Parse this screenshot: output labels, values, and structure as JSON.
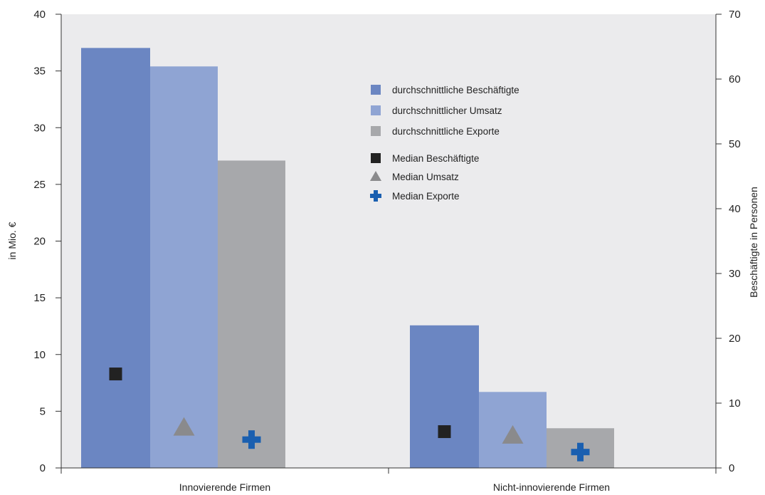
{
  "chart_data": {
    "type": "bar",
    "categories": [
      "Innovierende Firmen",
      "Nicht-innovierende Firmen"
    ],
    "series": [
      {
        "name": "durchschnittliche Beschäftigte",
        "axis": "right",
        "values": [
          64.8,
          22.0
        ],
        "color": "#6b86c2"
      },
      {
        "name": "durchschnittlicher Umsatz",
        "axis": "left",
        "values": [
          35.4,
          6.7
        ],
        "color": "#8fa4d3"
      },
      {
        "name": "durchschnittliche Exporte",
        "axis": "left",
        "values": [
          27.1,
          3.5
        ],
        "color": "#a7a8ab"
      }
    ],
    "markers": [
      {
        "name": "Median Beschäftigte",
        "shape": "square",
        "axis": "right",
        "values": [
          14.5,
          5.6
        ],
        "color": "#222222"
      },
      {
        "name": "Median Umsatz",
        "shape": "triangle",
        "axis": "left",
        "values": [
          3.6,
          2.9
        ],
        "color": "#8a8a8c"
      },
      {
        "name": "Median Exporte",
        "shape": "plus",
        "axis": "left",
        "values": [
          2.5,
          1.4
        ],
        "color": "#1a5fb0"
      }
    ],
    "ylabel": "in Mio. €",
    "y2label": "Beschäftigte in Personen",
    "ylim": [
      0,
      40
    ],
    "y2lim": [
      0,
      70
    ],
    "yticks": [
      0,
      5,
      10,
      15,
      20,
      25,
      30,
      35,
      40
    ],
    "y2ticks": [
      0,
      10,
      20,
      30,
      40,
      50,
      60,
      70
    ],
    "plot_background": "#ebebed",
    "legend_position": "upper-center",
    "grid": false
  }
}
